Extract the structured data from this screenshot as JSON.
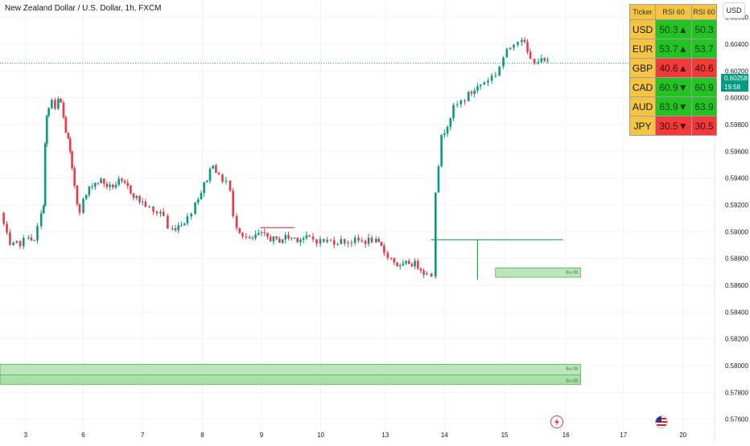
{
  "header": {
    "symbol_title": "New Zealand Dollar / U.S. Dollar, 1h, FXCM",
    "currency_button": "USD"
  },
  "price_tag": {
    "price": "0.60258",
    "countdown": "19:58"
  },
  "rsi_table": {
    "headers": [
      "Ticker",
      "RSI 60",
      "RSI 60"
    ],
    "rows": [
      {
        "ticker": "USD",
        "rsi": "50.3▲",
        "rsi2": "50.3",
        "status": "green"
      },
      {
        "ticker": "EUR",
        "rsi": "53.7▲",
        "rsi2": "53.7",
        "status": "green"
      },
      {
        "ticker": "GBP",
        "rsi": "40.6▲",
        "rsi2": "40.6",
        "status": "red"
      },
      {
        "ticker": "CAD",
        "rsi": "60.9▼",
        "rsi2": "60.9",
        "status": "green"
      },
      {
        "ticker": "AUD",
        "rsi": "63.9▼",
        "rsi2": "63.9",
        "status": "green"
      },
      {
        "ticker": "JPY",
        "rsi": "30.5▼",
        "rsi2": "30.5",
        "status": "red"
      }
    ]
  },
  "zone_labels": {
    "upper": "Bu-OB",
    "lower_1": "Bu-OB",
    "lower_2": "Bu-OB"
  },
  "colors": {
    "up": "#089981",
    "down": "#f23645",
    "zone_fill": "#a5dca5",
    "zone_border": "#4caf50",
    "line_red": "#f23645",
    "line_green": "#26a34a",
    "table_header": "#f5c542",
    "grid": "#f0f3fa",
    "axis_text": "#131722"
  },
  "chart_data": {
    "type": "candlestick",
    "title": "New Zealand Dollar / U.S. Dollar, 1h, FXCM",
    "xlabel": "",
    "ylabel": "",
    "ylim": [
      0.5743,
      0.6073
    ],
    "xlim": [
      2.55,
      20.45
    ],
    "x_ticks": [
      {
        "x": 3,
        "label": "3"
      },
      {
        "x": 6,
        "label": "6"
      },
      {
        "x": 7,
        "label": "7"
      },
      {
        "x": 8,
        "label": "8"
      },
      {
        "x": 9,
        "label": "9"
      },
      {
        "x": 10,
        "label": "10"
      },
      {
        "x": 13,
        "label": "13"
      },
      {
        "x": 14,
        "label": "14"
      },
      {
        "x": 15,
        "label": "15"
      },
      {
        "x": 16,
        "label": "16"
      },
      {
        "x": 17,
        "label": "17"
      },
      {
        "x": 20,
        "label": "20"
      }
    ],
    "y_ticks": [
      "0.60600",
      "0.60400",
      "0.60200",
      "0.60000",
      "0.59800",
      "0.59600",
      "0.59400",
      "0.59200",
      "0.59000",
      "0.58800",
      "0.58600",
      "0.58400",
      "0.58200",
      "0.58000",
      "0.57800",
      "0.57600"
    ],
    "x_break_points": [
      2.55,
      2.98,
      5.98,
      6.98,
      7.98,
      8.98,
      9.98,
      12.98,
      13.98,
      14.98,
      15.98,
      16.98,
      19.98,
      20.45
    ],
    "x_break_positions": [
      0,
      0.0354,
      0.1149,
      0.1978,
      0.2815,
      0.3643,
      0.4482,
      0.5376,
      0.6203,
      0.7044,
      0.7903,
      0.8719,
      0.9539,
      1.0
    ],
    "last_price": 0.60258,
    "candle_anchors": [
      [
        2.56,
        0.5914
      ],
      [
        2.72,
        0.5888
      ],
      [
        2.95,
        0.5893
      ],
      [
        3.15,
        0.5898
      ],
      [
        3.45,
        0.5892
      ],
      [
        3.62,
        0.5903
      ],
      [
        3.82,
        0.5912
      ],
      [
        3.95,
        0.5922
      ],
      [
        4.03,
        0.5965
      ],
      [
        4.12,
        0.5985
      ],
      [
        4.22,
        0.5992
      ],
      [
        4.38,
        0.5998
      ],
      [
        4.55,
        0.599
      ],
      [
        4.72,
        0.5998
      ],
      [
        4.85,
        0.5996
      ],
      [
        5.0,
        0.5985
      ],
      [
        5.12,
        0.5975
      ],
      [
        5.25,
        0.5968
      ],
      [
        5.35,
        0.5958
      ],
      [
        5.45,
        0.5945
      ],
      [
        5.58,
        0.5935
      ],
      [
        5.72,
        0.5922
      ],
      [
        5.85,
        0.5917
      ],
      [
        6.0,
        0.5923
      ],
      [
        6.15,
        0.5936
      ],
      [
        6.3,
        0.5938
      ],
      [
        6.45,
        0.5933
      ],
      [
        6.6,
        0.5937
      ],
      [
        6.75,
        0.5933
      ],
      [
        6.9,
        0.5925
      ],
      [
        7.05,
        0.592
      ],
      [
        7.18,
        0.5914
      ],
      [
        7.3,
        0.5915
      ],
      [
        7.35,
        0.5912
      ],
      [
        7.42,
        0.5902
      ],
      [
        7.5,
        0.5902
      ],
      [
        7.6,
        0.5905
      ],
      [
        7.75,
        0.591
      ],
      [
        7.88,
        0.5922
      ],
      [
        7.98,
        0.593
      ],
      [
        8.08,
        0.594
      ],
      [
        8.18,
        0.5952
      ],
      [
        8.28,
        0.594
      ],
      [
        8.4,
        0.5938
      ],
      [
        8.47,
        0.593
      ],
      [
        8.52,
        0.591
      ],
      [
        8.58,
        0.5905
      ],
      [
        8.68,
        0.5898
      ],
      [
        8.8,
        0.5893
      ],
      [
        8.95,
        0.5898
      ],
      [
        9.1,
        0.5896
      ],
      [
        9.25,
        0.5893
      ],
      [
        9.4,
        0.5896
      ],
      [
        9.6,
        0.5895
      ],
      [
        9.8,
        0.5895
      ],
      [
        9.98,
        0.5893
      ],
      [
        12.1,
        0.5893
      ],
      [
        12.4,
        0.5894
      ],
      [
        12.6,
        0.5892
      ],
      [
        12.85,
        0.5888
      ],
      [
        12.98,
        0.5885
      ],
      [
        13.1,
        0.588
      ],
      [
        13.25,
        0.5873
      ],
      [
        13.4,
        0.5877
      ],
      [
        13.55,
        0.5875
      ],
      [
        13.7,
        0.5868
      ],
      [
        13.78,
        0.5868
      ],
      [
        13.85,
        0.5932
      ],
      [
        13.95,
        0.597
      ],
      [
        14.15,
        0.5992
      ],
      [
        14.4,
        0.6002
      ],
      [
        14.6,
        0.601
      ],
      [
        14.85,
        0.6018
      ],
      [
        14.98,
        0.603
      ],
      [
        15.15,
        0.6042
      ],
      [
        15.28,
        0.6045
      ],
      [
        15.42,
        0.6028
      ],
      [
        15.55,
        0.6028
      ],
      [
        15.7,
        0.6026
      ]
    ],
    "annotations": [
      {
        "type": "hline",
        "color": "red",
        "x1": 8.98,
        "x2": 9.55,
        "y": 0.5903
      },
      {
        "type": "hline",
        "color": "green",
        "x1": 13.77,
        "x2": 15.95,
        "y": 0.5894
      },
      {
        "type": "vline",
        "color": "green",
        "x": 14.55,
        "y1": 0.5864,
        "y2": 0.5894
      },
      {
        "type": "zone",
        "x1": 14.85,
        "x2": 16.25,
        "y1": 0.5866,
        "y2": 0.5873,
        "label": "Bu-OB"
      },
      {
        "type": "zone",
        "x1": 2.55,
        "x2": 16.25,
        "y1": 0.5787,
        "y2": 0.5801,
        "label": "Bu-OB"
      },
      {
        "type": "zone",
        "x1": 2.55,
        "x2": 16.25,
        "y1": 0.5786,
        "y2": 0.5793,
        "label": "Bu-OB"
      }
    ]
  }
}
